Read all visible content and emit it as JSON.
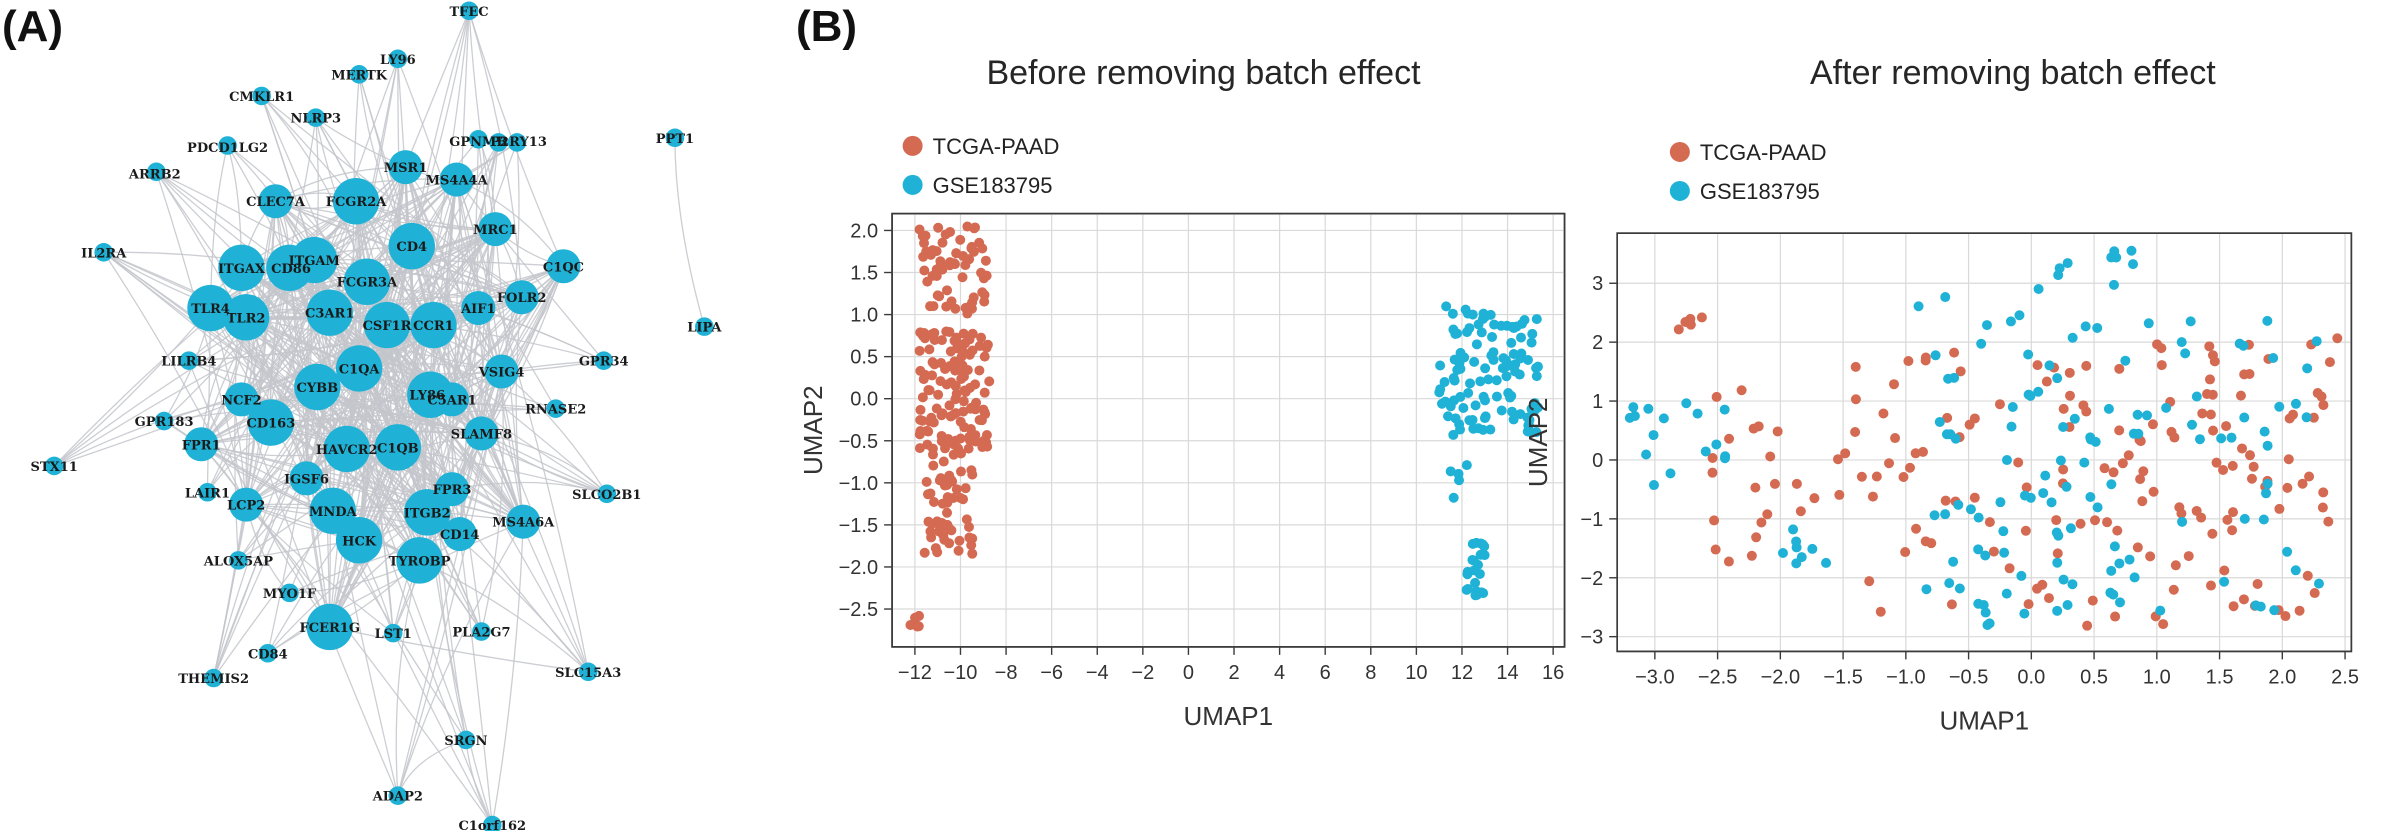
{
  "panels": {
    "a_label": "(A)",
    "b_label": "(B)"
  },
  "colors": {
    "node": "#1fb2d6",
    "edge": "#c3c6cb",
    "tcga": "#d46a52",
    "gse": "#1fb2d6"
  },
  "network": {
    "nodes": [
      {
        "id": "TFEC",
        "size": "small"
      },
      {
        "id": "LY96",
        "size": "small"
      },
      {
        "id": "MERTK",
        "size": "small"
      },
      {
        "id": "CMKLR1",
        "size": "small"
      },
      {
        "id": "NLRP3",
        "size": "small"
      },
      {
        "id": "GPNMB",
        "size": "small"
      },
      {
        "id": "P2RY13",
        "size": "small"
      },
      {
        "id": "C3AR1_hub",
        "size": "small"
      },
      {
        "id": "PDCD1LG2",
        "size": "small"
      },
      {
        "id": "ARRB2",
        "size": "small"
      },
      {
        "id": "MSR1",
        "size": "medium"
      },
      {
        "id": "MS4A4A",
        "size": "medium"
      },
      {
        "id": "CLEC7A",
        "size": "medium"
      },
      {
        "id": "FCGR2A",
        "size": "large"
      },
      {
        "id": "MRC1",
        "size": "medium"
      },
      {
        "id": "CD4",
        "size": "large"
      },
      {
        "id": "C1QC",
        "size": "medium"
      },
      {
        "id": "IL2RA",
        "size": "small"
      },
      {
        "id": "ITGAM",
        "size": "large"
      },
      {
        "id": "ITGAX",
        "size": "large"
      },
      {
        "id": "CD86",
        "size": "large"
      },
      {
        "id": "FCGR3A",
        "size": "large"
      },
      {
        "id": "FOLR2",
        "size": "medium"
      },
      {
        "id": "AIF1",
        "size": "medium"
      },
      {
        "id": "TLR4",
        "size": "large"
      },
      {
        "id": "TLR2",
        "size": "large"
      },
      {
        "id": "C3AR1",
        "size": "large"
      },
      {
        "id": "CSF1R",
        "size": "large"
      },
      {
        "id": "CCR1",
        "size": "large"
      },
      {
        "id": "LILRB4",
        "size": "small"
      },
      {
        "id": "C1QA",
        "size": "large"
      },
      {
        "id": "GPR34",
        "size": "small"
      },
      {
        "id": "VSIG4",
        "size": "medium"
      },
      {
        "id": "CYBB",
        "size": "large"
      },
      {
        "id": "LY86",
        "size": "large"
      },
      {
        "id": "C5AR1",
        "size": "medium"
      },
      {
        "id": "NCF2",
        "size": "medium"
      },
      {
        "id": "RNASE2",
        "size": "small"
      },
      {
        "id": "GPR183",
        "size": "small"
      },
      {
        "id": "CD163",
        "size": "large"
      },
      {
        "id": "PPT1",
        "size": "small"
      },
      {
        "id": "LIPA",
        "size": "small"
      },
      {
        "id": "STX11",
        "size": "small"
      },
      {
        "id": "FPR1",
        "size": "medium"
      },
      {
        "id": "HAVCR2",
        "size": "large"
      },
      {
        "id": "C1QB",
        "size": "large"
      },
      {
        "id": "SLAMF8",
        "size": "medium"
      },
      {
        "id": "IGSF6",
        "size": "medium"
      },
      {
        "id": "FPR3",
        "size": "medium"
      },
      {
        "id": "LAIR1",
        "size": "small"
      },
      {
        "id": "SLCO2B1",
        "size": "small"
      },
      {
        "id": "LCP2",
        "size": "medium"
      },
      {
        "id": "MNDA",
        "size": "large"
      },
      {
        "id": "ITGB2",
        "size": "large"
      },
      {
        "id": "CD14",
        "size": "medium"
      },
      {
        "id": "MS4A6A",
        "size": "medium"
      },
      {
        "id": "ALOX5AP",
        "size": "small"
      },
      {
        "id": "HCK",
        "size": "large"
      },
      {
        "id": "TYROBP",
        "size": "large"
      },
      {
        "id": "MYO1F",
        "size": "small"
      },
      {
        "id": "FCER1G",
        "size": "large"
      },
      {
        "id": "LST1",
        "size": "small"
      },
      {
        "id": "PLA2G7",
        "size": "small"
      },
      {
        "id": "CD84",
        "size": "small"
      },
      {
        "id": "THEMIS2",
        "size": "small"
      },
      {
        "id": "SLC15A3",
        "size": "small"
      },
      {
        "id": "SRGN",
        "size": "small"
      },
      {
        "id": "ADAP2",
        "size": "small"
      },
      {
        "id": "C1orf162",
        "size": "small"
      }
    ],
    "labels": [
      "TFEC",
      "LY96",
      "MERTK",
      "CMKLR1",
      "NLRP3",
      "GPNMB",
      "P2RY13",
      "PDCD1LG2",
      "ARRB2",
      "MSR1",
      "MS4A4A",
      "CLEC7A",
      "FCGR2A",
      "MRC1",
      "CD4",
      "C1QC",
      "IL2RA",
      "ITGAM",
      "ITGAX",
      "CD86",
      "FCGR3A",
      "FOLR2",
      "AIF1",
      "TLR4",
      "TLR2",
      "C3AR1",
      "CSF1R",
      "CCR1",
      "LILRB4",
      "C1QA",
      "GPR34",
      "VSIG4",
      "CYBB",
      "LY86",
      "C5AR1",
      "NCF2",
      "RNASE2",
      "GPR183",
      "CD163",
      "PPT1",
      "LIPA",
      "STX11",
      "FPR1",
      "HAVCR2",
      "C1QB",
      "SLAMF8",
      "IGSF6",
      "FPR3",
      "LAIR1",
      "SLCO2B1",
      "LCP2",
      "MNDA",
      "ITGB2",
      "CD14",
      "MS4A6A",
      "ALOX5AP",
      "HCK",
      "TYROBP",
      "MYO1F",
      "FCER1G",
      "LST1",
      "PLA2G7",
      "CD84",
      "THEMIS2",
      "SLC15A3",
      "SRGN",
      "ADAP2",
      "C1orf162"
    ]
  },
  "chart_data": [
    {
      "type": "scatter",
      "title": "Before removing batch effect",
      "xlabel": "UMAP1",
      "ylabel": "UMAP2",
      "xlim": [
        -13,
        16.5
      ],
      "ylim": [
        -2.95,
        2.2
      ],
      "xticks": [
        -12,
        -10,
        -8,
        -6,
        -4,
        -2,
        0,
        2,
        4,
        6,
        8,
        10,
        12,
        14,
        16
      ],
      "xtick_labels": [
        "−12",
        "−10",
        "−8",
        "−6",
        "−4",
        "−2",
        "0",
        "2",
        "4",
        "6",
        "8",
        "10",
        "12",
        "14",
        "16"
      ],
      "yticks": [
        2.0,
        1.5,
        1.0,
        0.5,
        0.0,
        -0.5,
        -1.0,
        -1.5,
        -2.0,
        -2.5
      ],
      "ytick_labels": [
        "2.0",
        "1.5",
        "1.0",
        "0.5",
        "0.0",
        "−0.5",
        "−1.0",
        "−1.5",
        "−2.0",
        "−2.5"
      ],
      "grid": true,
      "legend_position": "top-left",
      "series": [
        {
          "name": "TCGA-PAAD",
          "color": "#d46a52",
          "clusters": [
            {
              "x_range": [
                -11.8,
                -8.8
              ],
              "y_range": [
                1.0,
                2.05
              ],
              "n": 60
            },
            {
              "x_range": [
                -11.8,
                -8.7
              ],
              "y_range": [
                -0.6,
                0.8
              ],
              "n": 120
            },
            {
              "x_range": [
                -11.6,
                -9.4
              ],
              "y_range": [
                -1.85,
                -0.6
              ],
              "n": 55
            },
            {
              "x_range": [
                -12.2,
                -11.8
              ],
              "y_range": [
                -2.8,
                -2.55
              ],
              "n": 6
            }
          ]
        },
        {
          "name": "GSE183795",
          "color": "#1fb2d6",
          "clusters": [
            {
              "x_range": [
                11.0,
                15.4
              ],
              "y_range": [
                -0.4,
                1.1
              ],
              "n": 110
            },
            {
              "x_range": [
                11.3,
                12.4
              ],
              "y_range": [
                -1.2,
                -0.3
              ],
              "n": 6
            },
            {
              "x_range": [
                12.2,
                13.0
              ],
              "y_range": [
                -2.35,
                -1.65
              ],
              "n": 22
            }
          ]
        }
      ]
    },
    {
      "type": "scatter",
      "title": "After removing batch effect",
      "xlabel": "UMAP1",
      "ylabel": "UMAP2",
      "xlim": [
        -3.3,
        2.55
      ],
      "ylim": [
        -3.25,
        3.85
      ],
      "xticks": [
        -3.0,
        -2.5,
        -2.0,
        -1.5,
        -1.0,
        -0.5,
        0.0,
        0.5,
        1.0,
        1.5,
        2.0,
        2.5
      ],
      "xtick_labels": [
        "−3.0",
        "−2.5",
        "−2.0",
        "−1.5",
        "−1.0",
        "−0.5",
        "0.0",
        "0.5",
        "1.0",
        "1.5",
        "2.0",
        "2.5"
      ],
      "yticks": [
        3,
        2,
        1,
        0,
        -1,
        -2,
        -3
      ],
      "ytick_labels": [
        "3",
        "2",
        "1",
        "0",
        "−1",
        "−2",
        "−3"
      ],
      "grid": true,
      "legend_position": "top-left",
      "series": [
        {
          "name": "TCGA-PAAD",
          "color": "#d46a52",
          "clusters": [
            {
              "x_range": [
                -2.85,
                -2.6
              ],
              "y_range": [
                2.2,
                2.5
              ],
              "n": 6
            },
            {
              "x_range": [
                -2.6,
                -1.3
              ],
              "y_range": [
                -1.8,
                1.2
              ],
              "n": 25
            },
            {
              "x_range": [
                -1.4,
                0.0
              ],
              "y_range": [
                -2.8,
                2.0
              ],
              "n": 40
            },
            {
              "x_range": [
                0.0,
                2.45
              ],
              "y_range": [
                -2.9,
                2.1
              ],
              "n": 110
            }
          ]
        },
        {
          "name": "GSE183795",
          "color": "#1fb2d6",
          "clusters": [
            {
              "x_range": [
                -3.2,
                -2.4
              ],
              "y_range": [
                -0.5,
                1.0
              ],
              "n": 16
            },
            {
              "x_range": [
                -2.0,
                -1.6
              ],
              "y_range": [
                -1.8,
                -1.1
              ],
              "n": 8
            },
            {
              "x_range": [
                -0.9,
                0.4
              ],
              "y_range": [
                -2.9,
                2.9
              ],
              "n": 55
            },
            {
              "x_range": [
                0.2,
                2.3
              ],
              "y_range": [
                -2.6,
                2.4
              ],
              "n": 65
            },
            {
              "x_range": [
                0.0,
                1.0
              ],
              "y_range": [
                2.9,
                3.6
              ],
              "n": 10
            }
          ]
        }
      ]
    }
  ]
}
